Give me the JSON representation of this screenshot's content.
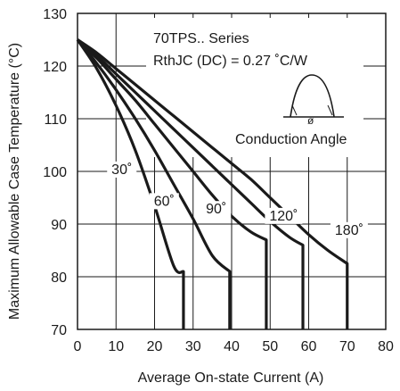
{
  "chart_data": {
    "type": "line",
    "xlabel": "Average On-state Current (A)",
    "ylabel": "Maximum Allowable Case Temperature (°C)",
    "xlim": [
      0,
      80
    ],
    "ylim": [
      70,
      130
    ],
    "xticks": [
      "0",
      "10",
      "20",
      "30",
      "40",
      "50",
      "60",
      "70",
      "80"
    ],
    "yticks": [
      "70",
      "80",
      "90",
      "100",
      "110",
      "120",
      "130"
    ],
    "grid": true,
    "annotations": {
      "series_title": "70TPS.. Series",
      "rth": "RthJC (DC) = 0.27 ˚C/W",
      "conduction": "Conduction Angle",
      "phi": "ø"
    },
    "series": [
      {
        "name": "30˚",
        "points": [
          [
            0,
            125
          ],
          [
            5,
            119.5
          ],
          [
            10,
            112.5
          ],
          [
            15,
            104
          ],
          [
            20,
            93.5
          ],
          [
            25,
            82
          ],
          [
            27.5,
            81
          ],
          [
            27.5,
            70
          ]
        ]
      },
      {
        "name": "60˚",
        "points": [
          [
            0,
            125
          ],
          [
            5,
            120.5
          ],
          [
            10,
            115.5
          ],
          [
            15,
            110
          ],
          [
            20,
            104
          ],
          [
            25,
            97.5
          ],
          [
            30,
            91
          ],
          [
            35,
            84
          ],
          [
            39.5,
            81
          ],
          [
            39.5,
            70
          ]
        ]
      },
      {
        "name": "90˚",
        "points": [
          [
            0,
            125
          ],
          [
            5,
            121.5
          ],
          [
            10,
            117.5
          ],
          [
            15,
            113.5
          ],
          [
            20,
            109
          ],
          [
            25,
            104.5
          ],
          [
            30,
            100
          ],
          [
            35,
            95.5
          ],
          [
            40,
            91.5
          ],
          [
            45,
            88.5
          ],
          [
            49,
            87
          ],
          [
            49,
            70
          ]
        ]
      },
      {
        "name": "120˚",
        "points": [
          [
            0,
            125
          ],
          [
            5,
            122
          ],
          [
            10,
            118.5
          ],
          [
            15,
            115
          ],
          [
            20,
            111.5
          ],
          [
            25,
            108
          ],
          [
            30,
            104.5
          ],
          [
            35,
            101
          ],
          [
            40,
            97.5
          ],
          [
            45,
            94
          ],
          [
            50,
            90.5
          ],
          [
            55,
            87.5
          ],
          [
            58.5,
            86
          ],
          [
            58.5,
            70
          ]
        ]
      },
      {
        "name": "180˚",
        "points": [
          [
            0,
            125
          ],
          [
            5,
            122.5
          ],
          [
            10,
            119.5
          ],
          [
            15,
            116.5
          ],
          [
            20,
            113.5
          ],
          [
            25,
            110.5
          ],
          [
            30,
            107.5
          ],
          [
            35,
            104.5
          ],
          [
            40,
            101.5
          ],
          [
            45,
            98.5
          ],
          [
            50,
            95
          ],
          [
            55,
            91.5
          ],
          [
            60,
            88
          ],
          [
            65,
            85
          ],
          [
            70,
            82.5
          ],
          [
            70,
            70
          ]
        ]
      }
    ],
    "labels": [
      {
        "text": "30˚",
        "x": 11.5,
        "y": 99.5
      },
      {
        "text": "60˚",
        "x": 22.5,
        "y": 93.5
      },
      {
        "text": "90˚",
        "x": 36,
        "y": 92
      },
      {
        "text": "120˚",
        "x": 53.5,
        "y": 90.7
      },
      {
        "text": "180˚",
        "x": 70.5,
        "y": 88
      }
    ]
  }
}
